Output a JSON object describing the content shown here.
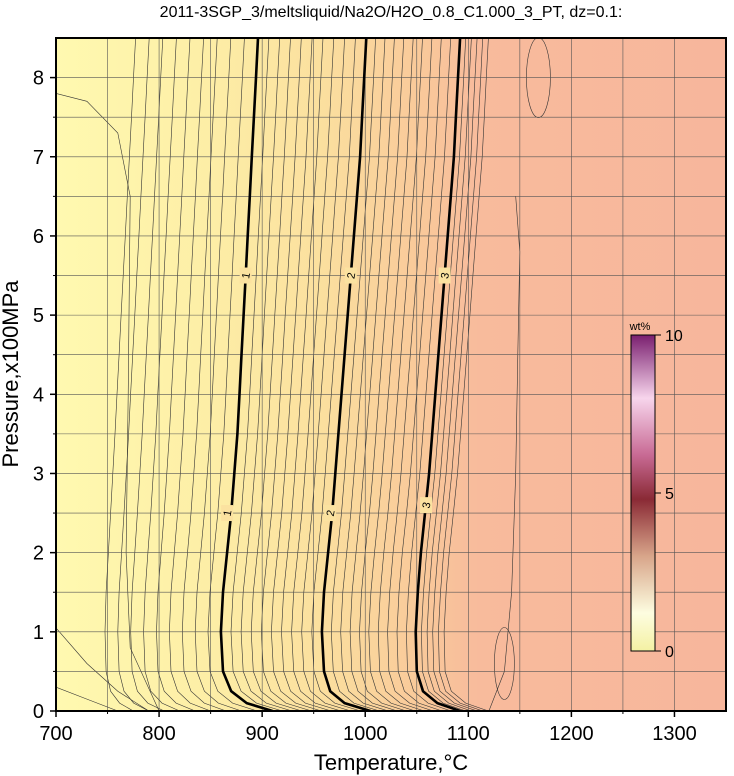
{
  "chart_data": {
    "type": "contour",
    "title": "2011-3SGP_3/meltsliquid/Na2O/H2O_0.8_C1.000_3_PT, dz=0.1:",
    "xlabel": "Temperature,°C",
    "ylabel": "Pressure,x100MPa",
    "xlim": [
      700,
      1350
    ],
    "ylim": [
      0,
      8.5
    ],
    "x_ticks": [
      "700",
      "800",
      "900",
      "1000",
      "1100",
      "1200",
      "1300"
    ],
    "y_ticks": [
      "0",
      "1",
      "2",
      "3",
      "4",
      "5",
      "6",
      "7",
      "8"
    ],
    "grid": true,
    "contour_interval": 0.1,
    "major_contours": [
      {
        "level": "1",
        "points": [
          [
            910,
            0
          ],
          [
            885,
            0.1
          ],
          [
            870,
            0.25
          ],
          [
            862,
            0.5
          ],
          [
            860,
            1.0
          ],
          [
            862,
            1.5
          ],
          [
            866,
            2.0
          ],
          [
            870,
            2.5
          ],
          [
            873,
            3.0
          ],
          [
            876,
            3.5
          ],
          [
            878,
            4.0
          ],
          [
            880,
            4.5
          ],
          [
            882,
            5.0
          ],
          [
            884,
            5.5
          ],
          [
            886,
            6.0
          ],
          [
            888,
            6.5
          ],
          [
            890,
            7.0
          ],
          [
            892,
            7.5
          ],
          [
            894,
            8.0
          ],
          [
            896,
            8.5
          ]
        ],
        "labels_at": [
          [
            866,
            2.5
          ],
          [
            884,
            5.5
          ]
        ]
      },
      {
        "level": "2",
        "points": [
          [
            1005,
            0
          ],
          [
            980,
            0.1
          ],
          [
            966,
            0.25
          ],
          [
            960,
            0.5
          ],
          [
            958,
            1.0
          ],
          [
            960,
            1.5
          ],
          [
            964,
            2.0
          ],
          [
            968,
            2.5
          ],
          [
            971,
            3.0
          ],
          [
            974,
            3.5
          ],
          [
            977,
            4.0
          ],
          [
            980,
            4.5
          ],
          [
            983,
            5.0
          ],
          [
            986,
            5.5
          ],
          [
            989,
            6.0
          ],
          [
            992,
            6.5
          ],
          [
            995,
            7.0
          ],
          [
            997,
            7.5
          ],
          [
            999,
            8.0
          ],
          [
            1001,
            8.5
          ]
        ],
        "labels_at": [
          [
            966,
            2.5
          ],
          [
            986,
            5.5
          ]
        ]
      },
      {
        "level": "3",
        "points": [
          [
            1092,
            0
          ],
          [
            1070,
            0.1
          ],
          [
            1056,
            0.25
          ],
          [
            1050,
            0.5
          ],
          [
            1049,
            1.0
          ],
          [
            1051,
            1.5
          ],
          [
            1054,
            2.0
          ],
          [
            1058,
            2.5
          ],
          [
            1062,
            3.0
          ],
          [
            1065,
            3.5
          ],
          [
            1068,
            4.0
          ],
          [
            1071,
            4.5
          ],
          [
            1074,
            5.0
          ],
          [
            1077,
            5.5
          ],
          [
            1080,
            6.0
          ],
          [
            1083,
            6.5
          ],
          [
            1086,
            7.0
          ],
          [
            1088,
            7.5
          ],
          [
            1090,
            8.0
          ],
          [
            1092,
            8.5
          ]
        ],
        "labels_at": [
          [
            1059,
            2.6
          ],
          [
            1077,
            5.5
          ]
        ]
      }
    ],
    "colorbar": {
      "unit": "wt%",
      "ticks": [
        "0",
        "5",
        "10"
      ],
      "range": [
        0,
        10
      ]
    },
    "fill_colors": {
      "low": "#fff9b0",
      "mid": "#fbd99a",
      "high": "#f9b99c"
    }
  }
}
